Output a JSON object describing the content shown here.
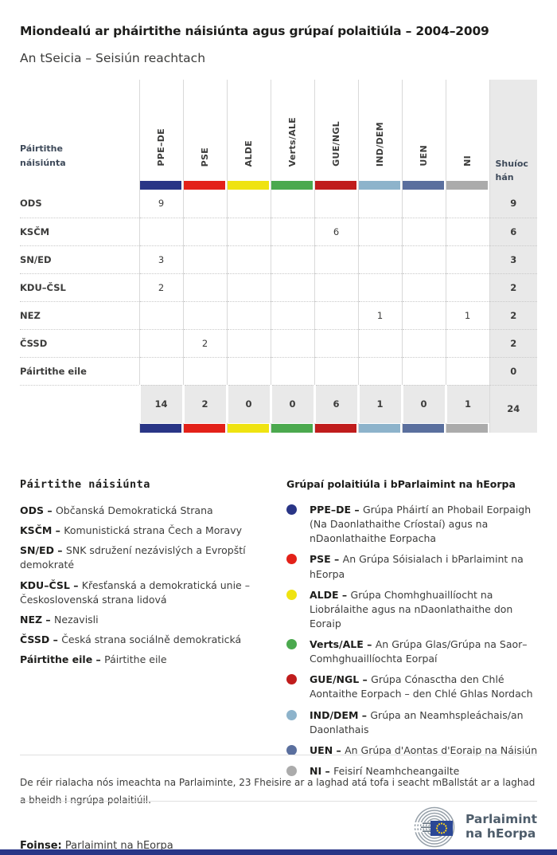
{
  "page": {
    "title": "Miondealú ar pháirtithe náisiúnta agus grúpaí polaitiúla – 2004–2009",
    "subtitle": "An tSeicia – Seisiún reachtach"
  },
  "colors": {
    "ppe_de": "#293586",
    "pse": "#e32119",
    "alde": "#efe311",
    "verts_ale": "#4ba94e",
    "gue_ngl": "#c01c1c",
    "ind_dem": "#8db3cb",
    "uen": "#5a6f9e",
    "ni": "#ababab",
    "seats_bg": "#e9e9e9",
    "footer_bar": "#293586",
    "eu_flag": "#2b4795",
    "eu_stars": "#ffd617",
    "logo_text": "#4e5d6b"
  },
  "table": {
    "row_header_label": "Páirtithe náisiúnta",
    "seats_label": "Shuíochán",
    "groups": [
      {
        "code": "PPE–DE",
        "color": "#293586"
      },
      {
        "code": "PSE",
        "color": "#e32119"
      },
      {
        "code": "ALDE",
        "color": "#efe311"
      },
      {
        "code": "Verts/ALE",
        "color": "#4ba94e"
      },
      {
        "code": "GUE/NGL",
        "color": "#c01c1c"
      },
      {
        "code": "IND/DEM",
        "color": "#8db3cb"
      },
      {
        "code": "UEN",
        "color": "#5a6f9e"
      },
      {
        "code": "NI",
        "color": "#ababab"
      }
    ],
    "rows": [
      {
        "party": "ODS",
        "values": [
          "9",
          "",
          "",
          "",
          "",
          "",
          "",
          ""
        ],
        "seats": "9"
      },
      {
        "party": "KSČM",
        "values": [
          "",
          "",
          "",
          "",
          "6",
          "",
          "",
          ""
        ],
        "seats": "6"
      },
      {
        "party": "SN/ED",
        "values": [
          "3",
          "",
          "",
          "",
          "",
          "",
          "",
          ""
        ],
        "seats": "3"
      },
      {
        "party": "KDU–ČSL",
        "values": [
          "2",
          "",
          "",
          "",
          "",
          "",
          "",
          ""
        ],
        "seats": "2"
      },
      {
        "party": "NEZ",
        "values": [
          "",
          "",
          "",
          "",
          "",
          "1",
          "",
          "1"
        ],
        "seats": "2"
      },
      {
        "party": "ČSSD",
        "values": [
          "",
          "2",
          "",
          "",
          "",
          "",
          "",
          ""
        ],
        "seats": "2"
      },
      {
        "party": "Páirtithe eile",
        "values": [
          "",
          "",
          "",
          "",
          "",
          "",
          "",
          ""
        ],
        "seats": "0"
      }
    ],
    "totals": {
      "values": [
        "14",
        "2",
        "0",
        "0",
        "6",
        "1",
        "0",
        "1"
      ],
      "seats": "24"
    }
  },
  "legend_parties": {
    "title": "Páirtithe náisiúnta",
    "items": [
      {
        "code": "ODS",
        "desc": "Občanská Demokratická Strana"
      },
      {
        "code": "KSČM",
        "desc": "Komunistická strana Čech a Moravy"
      },
      {
        "code": "SN/ED",
        "desc": "SNK sdružení nezávislých a Evropští demokraté"
      },
      {
        "code": "KDU–ČSL",
        "desc": "Křesťanská a demokratická unie – Československá strana lidová"
      },
      {
        "code": "NEZ",
        "desc": "Nezavisli"
      },
      {
        "code": "ČSSD",
        "desc": "Česká strana sociálně demokratická"
      },
      {
        "code": "Páirtithe eile",
        "desc": "Páirtithe eile"
      }
    ]
  },
  "legend_groups": {
    "title": "Grúpaí polaitiúla i bParlaimint na hEorpa",
    "items": [
      {
        "code": "PPE–DE",
        "color": "#293586",
        "desc": "Grúpa Pháirtí an Phobail Eorpaigh (Na Daonlathaithe Críostaí) agus na nDaonlathaithe Eorpacha"
      },
      {
        "code": "PSE",
        "color": "#e32119",
        "desc": "An Grúpa Sóisialach i bParlaimint na hEorpa"
      },
      {
        "code": "ALDE",
        "color": "#efe311",
        "desc": "Grúpa Chomhghuaillíocht na Liobrálaithe agus na nDaonlathaithe don Eoraip"
      },
      {
        "code": "Verts/ALE",
        "color": "#4ba94e",
        "desc": "An Grúpa Glas/Grúpa na Saor–Comhghuaillíochta Eorpaí"
      },
      {
        "code": "GUE/NGL",
        "color": "#c01c1c",
        "desc": "Grúpa Cónasctha den Chlé Aontaithe Eorpach – den Chlé Ghlas Nordach"
      },
      {
        "code": "IND/DEM",
        "color": "#8db3cb",
        "desc": "Grúpa an Neamhspleáchais/an Daonlathais"
      },
      {
        "code": "UEN",
        "color": "#5a6f9e",
        "desc": "An Grúpa d'Aontas d'Eoraip na Náisiún"
      },
      {
        "code": "NI",
        "color": "#ababab",
        "desc": "Feisirí Neamhcheangailte"
      }
    ]
  },
  "footer": {
    "note": "De réir rialacha nós imeachta na Parlaiminte, 23 Fheisire ar a laghad atá tofa i seacht mBallstát ar a laghad a bheidh i ngrúpa polaitiúil.",
    "source_label": "Foinse:",
    "source_value": "Parlaimint na hEorpa",
    "logo_text_line1": "Parlaimint",
    "logo_text_line2": "na hEorpa"
  },
  "chart_data": {
    "type": "table",
    "title": "Miondealú ar pháirtithe náisiúnta agus grúpaí polaitiúla – 2004–2009",
    "subtitle": "An tSeicia – Seisiún reachtach",
    "columns": [
      "PPE–DE",
      "PSE",
      "ALDE",
      "Verts/ALE",
      "GUE/NGL",
      "IND/DEM",
      "UEN",
      "NI",
      "Shuíochán"
    ],
    "rows": [
      {
        "party": "ODS",
        "values": [
          9,
          null,
          null,
          null,
          null,
          null,
          null,
          null
        ],
        "seats": 9
      },
      {
        "party": "KSČM",
        "values": [
          null,
          null,
          null,
          null,
          6,
          null,
          null,
          null
        ],
        "seats": 6
      },
      {
        "party": "SN/ED",
        "values": [
          3,
          null,
          null,
          null,
          null,
          null,
          null,
          null
        ],
        "seats": 3
      },
      {
        "party": "KDU–ČSL",
        "values": [
          2,
          null,
          null,
          null,
          null,
          null,
          null,
          null
        ],
        "seats": 2
      },
      {
        "party": "NEZ",
        "values": [
          null,
          null,
          null,
          null,
          null,
          1,
          null,
          1
        ],
        "seats": 2
      },
      {
        "party": "ČSSD",
        "values": [
          null,
          2,
          null,
          null,
          null,
          null,
          null,
          null
        ],
        "seats": 2
      },
      {
        "party": "Páirtithe eile",
        "values": [
          null,
          null,
          null,
          null,
          null,
          null,
          null,
          null
        ],
        "seats": 0
      }
    ],
    "totals": {
      "values": [
        14,
        2,
        0,
        0,
        6,
        1,
        0,
        1
      ],
      "seats": 24
    }
  }
}
